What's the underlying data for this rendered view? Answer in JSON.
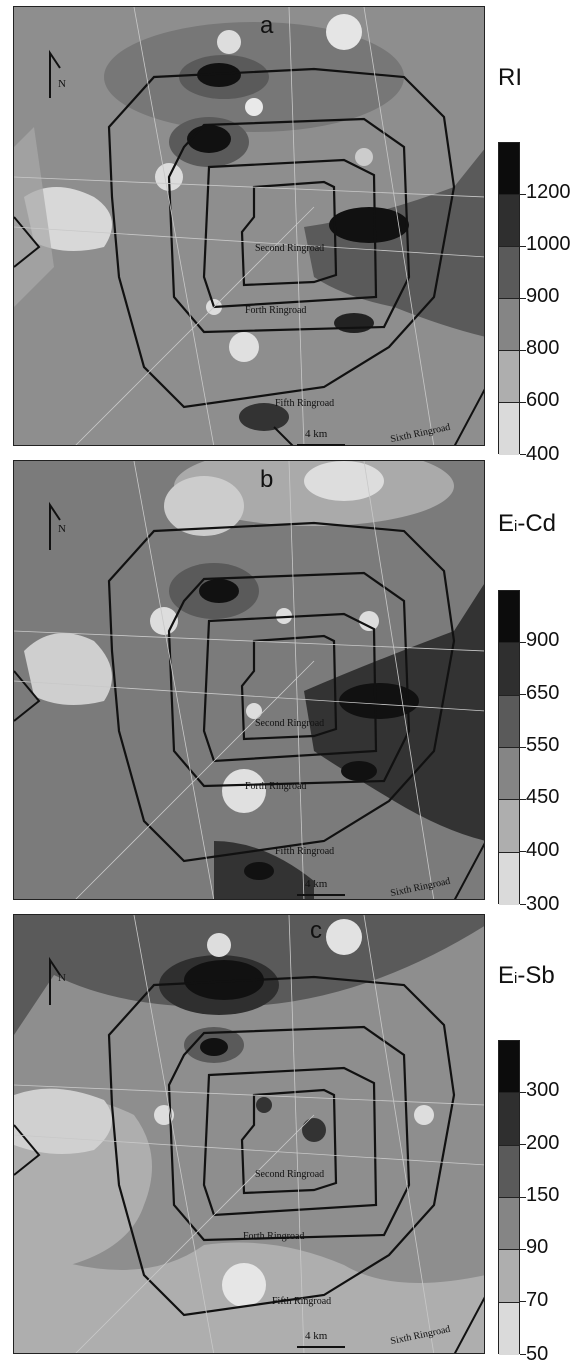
{
  "panels": [
    {
      "letter": "a",
      "title_main": "RI",
      "title_sub": "",
      "legend_labels": [
        "1200",
        "1000",
        "900",
        "800",
        "600",
        "400"
      ],
      "legend_colors": [
        "#0c0c0c",
        "#2f2f2f",
        "#5a5a5a",
        "#858585",
        "#aeaeae",
        "#dadada"
      ],
      "background_color": "#8e8e8e",
      "labels": {
        "second": "Second Ringroad",
        "forth": "Forth Ringroad",
        "fifth": "Fifth Ringroad",
        "sixth": "Sixth Ringroad"
      }
    },
    {
      "letter": "b",
      "title_main": "E",
      "title_sub": "i",
      "title_suffix": "-Cd",
      "legend_labels": [
        "900",
        "650",
        "550",
        "450",
        "400",
        "300"
      ],
      "legend_colors": [
        "#0c0c0c",
        "#2f2f2f",
        "#5a5a5a",
        "#858585",
        "#aeaeae",
        "#dadada"
      ],
      "background_color": "#7b7b7b",
      "labels": {
        "second": "Second Ringroad",
        "forth": "Forth Ringroad",
        "fifth": "Fifth Ringroad",
        "sixth": "Sixth Ringroad"
      }
    },
    {
      "letter": "c",
      "title_main": "E",
      "title_sub": "i",
      "title_suffix": "-Sb",
      "legend_labels": [
        "300",
        "200",
        "150",
        "90",
        "70",
        "50"
      ],
      "legend_colors": [
        "#0c0c0c",
        "#2f2f2f",
        "#5a5a5a",
        "#858585",
        "#aeaeae",
        "#dadada"
      ],
      "background_color": "#8e8e8e",
      "labels": {
        "second": "Second Ringroad",
        "forth": "Forth Ringroad",
        "fifth": "Fifth Ringroad",
        "sixth": "Sixth Ringroad"
      }
    }
  ],
  "north_label": "N",
  "scale_label": "4 km"
}
